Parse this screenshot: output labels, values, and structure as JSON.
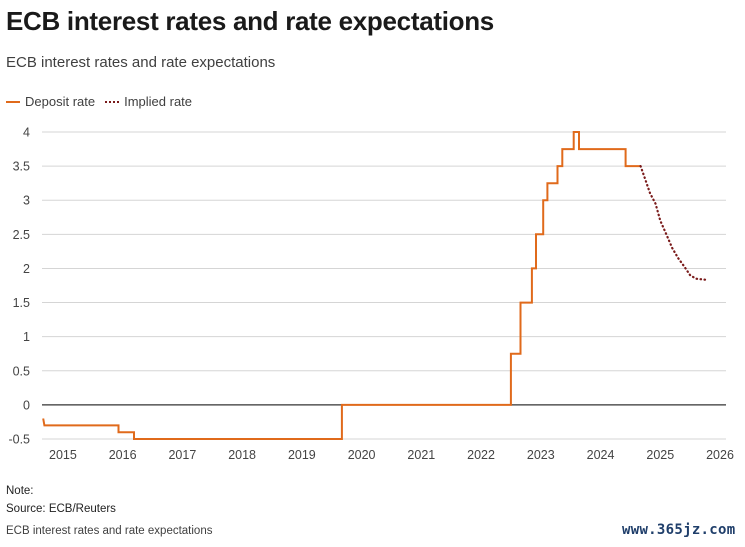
{
  "title": "ECB interest rates and rate expectations",
  "subtitle": "ECB interest rates and rate expectations",
  "legend": {
    "deposit": "Deposit rate",
    "implied": "Implied rate"
  },
  "note": "Note:",
  "source": "Source: ECB/Reuters",
  "footer": "ECB interest rates and rate expectations",
  "watermark": "www.365jz.com",
  "colors": {
    "deposit": "#e06a1b",
    "implied": "#7a1b1b",
    "grid": "#d5d5d5",
    "zero_line": "#333333"
  },
  "chart_data": {
    "type": "line",
    "title": "ECB interest rates and rate expectations",
    "xlabel": "",
    "ylabel": "",
    "xlim": [
      2014.65,
      2026.1
    ],
    "ylim": [
      -0.5,
      4
    ],
    "y_ticks": [
      -0.5,
      0,
      0.5,
      1,
      1.5,
      2,
      2.5,
      3,
      3.5,
      4
    ],
    "y_tick_labels": [
      "-0.5",
      "0",
      "0.5",
      "1",
      "1.5",
      "2",
      "2.5",
      "3",
      "3.5",
      "4"
    ],
    "x_ticks": [
      2015,
      2016,
      2017,
      2018,
      2019,
      2020,
      2021,
      2022,
      2023,
      2024,
      2025,
      2026
    ],
    "x_tick_labels": [
      "2015",
      "2016",
      "2017",
      "2018",
      "2019",
      "2020",
      "2021",
      "2022",
      "2023",
      "2024",
      "2025",
      "2026"
    ],
    "grid": true,
    "legend_position": "top-left",
    "series": [
      {
        "name": "Deposit rate",
        "style": "step",
        "points": [
          [
            2014.67,
            -0.2
          ],
          [
            2014.69,
            -0.3
          ],
          [
            2015.93,
            -0.3
          ],
          [
            2015.93,
            -0.4
          ],
          [
            2016.19,
            -0.4
          ],
          [
            2016.19,
            -0.5
          ],
          [
            2019.67,
            -0.5
          ],
          [
            2019.67,
            0.0
          ],
          [
            2022.5,
            0.0
          ],
          [
            2022.5,
            0.75
          ],
          [
            2022.66,
            0.75
          ],
          [
            2022.66,
            1.5
          ],
          [
            2022.85,
            1.5
          ],
          [
            2022.85,
            2.0
          ],
          [
            2022.92,
            2.0
          ],
          [
            2022.92,
            2.5
          ],
          [
            2023.04,
            2.5
          ],
          [
            2023.04,
            3.0
          ],
          [
            2023.11,
            3.0
          ],
          [
            2023.11,
            3.25
          ],
          [
            2023.28,
            3.25
          ],
          [
            2023.28,
            3.5
          ],
          [
            2023.36,
            3.5
          ],
          [
            2023.36,
            3.75
          ],
          [
            2023.55,
            3.75
          ],
          [
            2023.55,
            4.0
          ],
          [
            2023.64,
            4.0
          ],
          [
            2023.64,
            3.75
          ],
          [
            2024.42,
            3.75
          ],
          [
            2024.42,
            3.5
          ],
          [
            2024.67,
            3.5
          ]
        ]
      },
      {
        "name": "Implied rate",
        "style": "dotted",
        "points": [
          [
            2024.67,
            3.5
          ],
          [
            2024.75,
            3.3
          ],
          [
            2024.83,
            3.1
          ],
          [
            2024.92,
            2.95
          ],
          [
            2025.0,
            2.7
          ],
          [
            2025.1,
            2.5
          ],
          [
            2025.2,
            2.3
          ],
          [
            2025.3,
            2.15
          ],
          [
            2025.4,
            2.03
          ],
          [
            2025.5,
            1.9
          ],
          [
            2025.6,
            1.85
          ],
          [
            2025.7,
            1.84
          ],
          [
            2025.8,
            1.83
          ]
        ]
      }
    ]
  }
}
